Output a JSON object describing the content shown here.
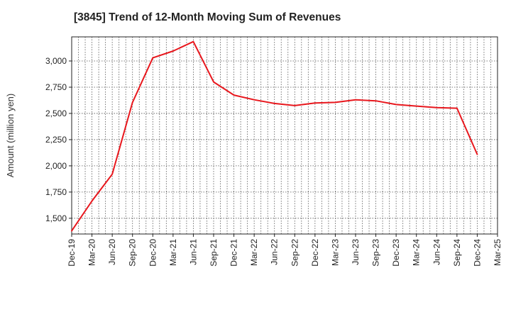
{
  "chart_data": {
    "type": "line",
    "title": "[3845]  Trend of 12-Month Moving Sum of Revenues",
    "xlabel": "",
    "ylabel": "Amount (million yen)",
    "ylim": [
      1350,
      3230
    ],
    "yticks": [
      1500,
      1750,
      2000,
      2250,
      2500,
      2750,
      3000
    ],
    "ytick_labels": [
      "1,500",
      "1,750",
      "2,000",
      "2,250",
      "2,500",
      "2,750",
      "3,000"
    ],
    "x_tick_labels": [
      "Dec-19",
      "Mar-20",
      "Jun-20",
      "Sep-20",
      "Dec-20",
      "Mar-21",
      "Jun-21",
      "Sep-21",
      "Dec-21",
      "Mar-22",
      "Jun-22",
      "Sep-22",
      "Dec-22",
      "Mar-23",
      "Jun-23",
      "Sep-23",
      "Dec-23",
      "Mar-24",
      "Jun-24",
      "Sep-24",
      "Dec-24",
      "Mar-25"
    ],
    "grid": true,
    "series": [
      {
        "color": "#e8171d",
        "x": [
          "Dec-19",
          "Mar-20",
          "Jun-20",
          "Sep-20",
          "Dec-20",
          "Mar-21",
          "Jun-21",
          "Sep-21",
          "Dec-21",
          "Mar-22",
          "Jun-22",
          "Sep-22",
          "Dec-22",
          "Mar-23",
          "Jun-23",
          "Sep-23",
          "Dec-23",
          "Mar-24",
          "Jun-24",
          "Sep-24",
          "Dec-24"
        ],
        "values": [
          1380,
          1665,
          1920,
          2605,
          3030,
          3095,
          3185,
          2800,
          2675,
          2630,
          2595,
          2575,
          2600,
          2605,
          2630,
          2620,
          2585,
          2570,
          2555,
          2550,
          2110
        ]
      }
    ]
  }
}
